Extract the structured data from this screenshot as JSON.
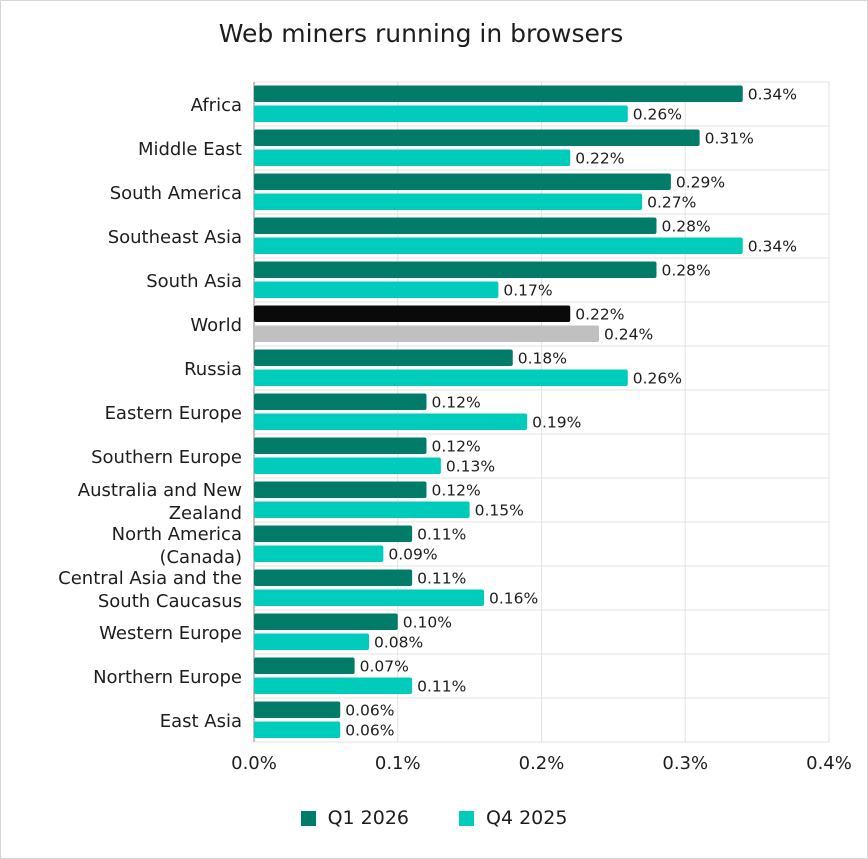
{
  "chart_data": {
    "type": "bar",
    "orientation": "horizontal",
    "title": "Web miners running in browsers",
    "categories": [
      "Africa",
      "Middle East",
      "South America",
      "Southeast Asia",
      "South Asia",
      "World",
      "Russia",
      "Eastern Europe",
      "Southern Europe",
      "Australia and New Zealand",
      "North America (Canada)",
      "Central Asia and the South Caucasus",
      "Western Europe",
      "Northern Europe",
      "East Asia"
    ],
    "category_lines": [
      [
        "Africa"
      ],
      [
        "Middle East"
      ],
      [
        "South America"
      ],
      [
        "Southeast Asia"
      ],
      [
        "South Asia"
      ],
      [
        "World"
      ],
      [
        "Russia"
      ],
      [
        "Eastern Europe"
      ],
      [
        "Southern Europe"
      ],
      [
        "Australia and New",
        "Zealand"
      ],
      [
        "North America",
        "(Canada)"
      ],
      [
        "Central Asia and the",
        "South Caucasus"
      ],
      [
        "Western Europe"
      ],
      [
        "Northern Europe"
      ],
      [
        "East Asia"
      ]
    ],
    "series": [
      {
        "name": "Q1 2026",
        "color": "#007c68",
        "values": [
          0.34,
          0.31,
          0.29,
          0.28,
          0.28,
          0.22,
          0.18,
          0.12,
          0.12,
          0.12,
          0.11,
          0.11,
          0.1,
          0.07,
          0.06
        ],
        "labels": [
          "0.34%",
          "0.31%",
          "0.29%",
          "0.28%",
          "0.28%",
          "0.22%",
          "0.18%",
          "0.12%",
          "0.12%",
          "0.12%",
          "0.11%",
          "0.11%",
          "0.10%",
          "0.07%",
          "0.06%"
        ]
      },
      {
        "name": "Q4 2025",
        "color": "#00ccbb",
        "values": [
          0.26,
          0.22,
          0.27,
          0.34,
          0.17,
          0.24,
          0.26,
          0.19,
          0.13,
          0.15,
          0.09,
          0.16,
          0.08,
          0.11,
          0.06
        ],
        "labels": [
          "0.26%",
          "0.22%",
          "0.27%",
          "0.34%",
          "0.17%",
          "0.24%",
          "0.26%",
          "0.19%",
          "0.13%",
          "0.15%",
          "0.09%",
          "0.16%",
          "0.08%",
          "0.11%",
          "0.06%"
        ]
      }
    ],
    "highlight": {
      "category": "World",
      "colors": [
        "#0a0a0a",
        "#c0c0c0"
      ]
    },
    "xlim": [
      0,
      0.4
    ],
    "xticks": [
      "0.0%",
      "0.1%",
      "0.2%",
      "0.3%",
      "0.4%"
    ],
    "grid": true,
    "legend_position": "bottom"
  }
}
